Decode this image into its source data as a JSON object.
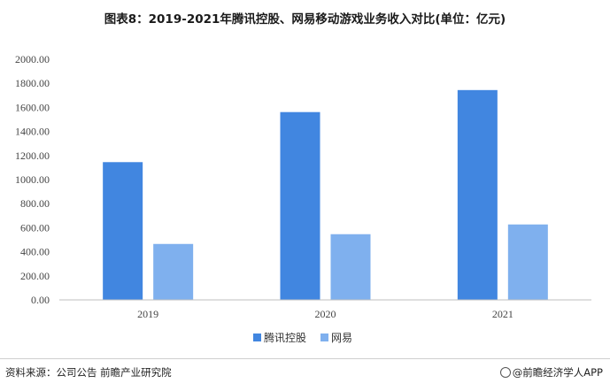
{
  "title": "图表8：2019-2021年腾讯控股、网易移动游戏业务收入对比(单位：亿元)",
  "source": "资料来源：公司公告 前瞻产业研究院",
  "brand": "@前瞻经济学人APP",
  "colors": {
    "tencent": "#4186e0",
    "netease": "#7fb0ee",
    "grid": "#d9d9d9",
    "axis": "#bfbfbf"
  },
  "chart_data": {
    "type": "bar",
    "categories": [
      "2019",
      "2020",
      "2021"
    ],
    "series": [
      {
        "name": "腾讯控股",
        "values": [
          1145,
          1561,
          1744
        ]
      },
      {
        "name": "网易",
        "values": [
          465,
          546,
          627
        ]
      }
    ],
    "yticks": [
      "0.00",
      "200.00",
      "400.00",
      "600.00",
      "800.00",
      "1000.00",
      "1200.00",
      "1400.00",
      "1600.00",
      "1800.00",
      "2000.00"
    ],
    "ylim": [
      0,
      2000
    ],
    "grid": false,
    "legend_position": "bottom-center"
  }
}
